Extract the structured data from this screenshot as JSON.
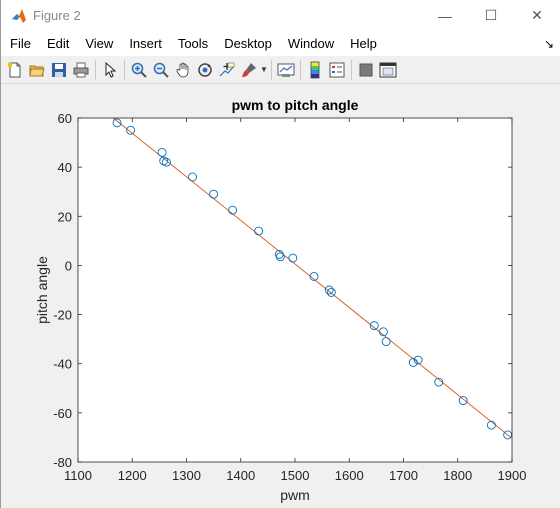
{
  "window": {
    "title": "Figure 2",
    "controls": [
      "—",
      "☐",
      "✕"
    ]
  },
  "menu": {
    "items": [
      "File",
      "Edit",
      "View",
      "Insert",
      "Tools",
      "Desktop",
      "Window",
      "Help"
    ],
    "overflow": "↘"
  },
  "toolbar": {
    "buttons": [
      "new-figure-icon",
      "open-file-icon",
      "save-icon",
      "print-icon",
      "pointer-icon",
      "zoom-in-icon",
      "zoom-out-icon",
      "pan-icon",
      "rotate-3d-icon",
      "data-cursor-icon",
      "brush-icon",
      "link-plot-icon",
      "colorbar-icon",
      "legend-icon",
      "hide-plot-tools-icon",
      "show-plot-tools-icon"
    ]
  },
  "chart_data": {
    "type": "scatter",
    "title": "pwm to pitch angle",
    "xlabel": "pwm",
    "ylabel": "pitch angle",
    "xlim": [
      1100,
      1900
    ],
    "ylim": [
      -80,
      60
    ],
    "xticks": [
      1100,
      1200,
      1300,
      1400,
      1500,
      1600,
      1700,
      1800,
      1900
    ],
    "yticks": [
      -80,
      -60,
      -40,
      -20,
      0,
      20,
      40,
      60
    ],
    "grid": false,
    "series": [
      {
        "marker": "circle",
        "color": "#0072bd",
        "points": [
          [
            1172,
            58
          ],
          [
            1197,
            55
          ],
          [
            1255,
            46
          ],
          [
            1258,
            42.5
          ],
          [
            1263,
            42
          ],
          [
            1311,
            36
          ],
          [
            1350,
            29
          ],
          [
            1385,
            22.5
          ],
          [
            1433,
            14
          ],
          [
            1471,
            4.5
          ],
          [
            1473,
            3.5
          ],
          [
            1496,
            3
          ],
          [
            1535,
            -4.5
          ],
          [
            1563,
            -10
          ],
          [
            1567,
            -11
          ],
          [
            1646,
            -24.5
          ],
          [
            1663,
            -27
          ],
          [
            1668,
            -31
          ],
          [
            1718,
            -39.5
          ],
          [
            1727,
            -38.5
          ],
          [
            1765,
            -47.5
          ],
          [
            1810,
            -55
          ],
          [
            1862,
            -65
          ],
          [
            1892,
            -69
          ]
        ]
      },
      {
        "type": "line",
        "color": "#d95319",
        "points": [
          [
            1165,
            60
          ],
          [
            1898,
            -70
          ]
        ]
      }
    ]
  }
}
